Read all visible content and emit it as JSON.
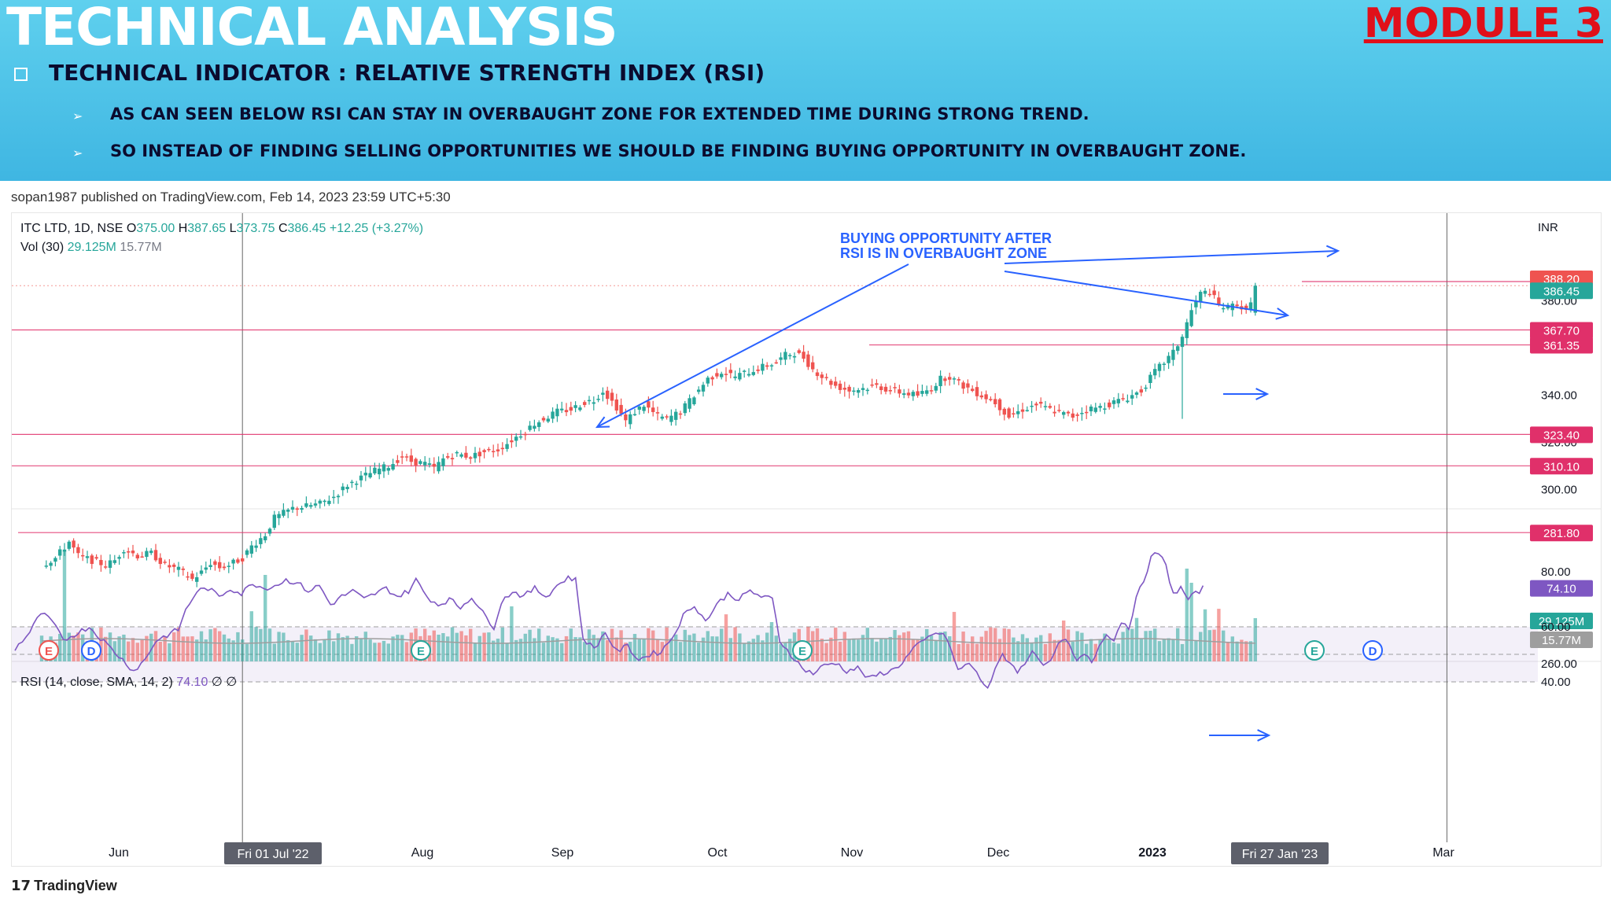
{
  "header": {
    "title": "TECHNICAL ANALYSIS",
    "module": "MODULE 3",
    "subtitle": "TECHNICAL INDICATOR : RELATIVE STRENGTH INDEX (RSI)",
    "bullets": [
      "AS CAN SEEN BELOW RSI CAN STAY IN OVERBAUGHT ZONE FOR EXTENDED TIME DURING STRONG TREND.",
      "SO INSTEAD OF FINDING SELLING OPPORTUNITIES WE SHOULD BE FINDING BUYING OPPORTUNITY IN OVERBAUGHT ZONE."
    ]
  },
  "publisher": "sopan1987 published on TradingView.com, Feb 14, 2023 23:59 UTC+5:30",
  "footer_logo": "TradingView",
  "colors": {
    "up": "#26a69a",
    "down": "#ef5350",
    "rsi": "#7e57c2",
    "hline": "#e0306a",
    "annotation": "#2962ff",
    "banner": "#4cc3ea"
  },
  "legend": {
    "symbol": "ITC LTD, 1D, NSE",
    "open_label": "O",
    "open": "375.00",
    "high_label": "H",
    "high": "387.65",
    "low_label": "L",
    "low": "373.75",
    "close_label": "C",
    "close": "386.45",
    "change": "+12.25 (+3.27%)",
    "vol_label": "Vol (30)",
    "vol": "29.125M",
    "vol_ma": "15.77M",
    "rsi_label": "RSI (14, close, SMA, 14, 2)",
    "rsi_value": "74.10",
    "rsi_extra": "∅ ∅"
  },
  "annotation": {
    "line1": "BUYING OPPORTUNITY AFTER",
    "line2": "RSI IS IN OVERBAUGHT ZONE"
  },
  "chart_data": {
    "type": "candlestick",
    "currency": "INR",
    "price_axis_ticks": [
      "380.00",
      "340.00",
      "320.00",
      "300.00",
      "260.00"
    ],
    "price_labels": [
      {
        "value": "388.20",
        "bg": "#ef5350"
      },
      {
        "value": "386.45",
        "bg": "#26a69a"
      },
      {
        "value": "367.70",
        "bg": "#e0306a"
      },
      {
        "value": "361.35",
        "bg": "#e0306a"
      },
      {
        "value": "323.40",
        "bg": "#e0306a"
      },
      {
        "value": "310.10",
        "bg": "#e0306a"
      },
      {
        "value": "281.80",
        "bg": "#e0306a"
      },
      {
        "value": "29.125M",
        "bg": "#26a69a"
      },
      {
        "value": "15.77M",
        "bg": "#9e9e9e"
      }
    ],
    "horizontal_lines": [
      367.7,
      361.35,
      323.4,
      310.1,
      281.8,
      388.2
    ],
    "rsi_axis_ticks": [
      "80.00",
      "60.00",
      "40.00"
    ],
    "rsi_label_value": "74.10",
    "rsi_band": [
      40,
      60
    ],
    "time_labels": [
      "Jun",
      "Aug",
      "Sep",
      "Oct",
      "Nov",
      "Dec",
      "2023",
      "Mar"
    ],
    "highlight_time_labels": [
      "Fri 01 Jul '22",
      "Fri 27 Jan '23"
    ],
    "event_markers": [
      {
        "label": "E",
        "kind": "earnings",
        "color": "#ef5350"
      },
      {
        "label": "D",
        "kind": "dividend",
        "color": "#2962ff"
      },
      {
        "label": "E",
        "kind": "earnings",
        "color": "#26a69a"
      },
      {
        "label": "E",
        "kind": "earnings",
        "color": "#26a69a"
      },
      {
        "label": "E",
        "kind": "earnings",
        "color": "#26a69a"
      },
      {
        "label": "D",
        "kind": "dividend",
        "color": "#2962ff"
      }
    ],
    "price_anchors": [
      [
        0,
        268
      ],
      [
        3,
        271
      ],
      [
        6,
        278
      ],
      [
        8,
        272
      ],
      [
        11,
        270
      ],
      [
        14,
        268
      ],
      [
        16,
        270
      ],
      [
        18,
        275
      ],
      [
        21,
        272
      ],
      [
        24,
        273
      ],
      [
        27,
        268
      ],
      [
        30,
        266
      ],
      [
        33,
        262
      ],
      [
        35,
        265
      ],
      [
        37,
        269
      ],
      [
        39,
        267
      ],
      [
        41,
        268
      ],
      [
        44,
        271
      ],
      [
        46,
        276
      ],
      [
        49,
        281
      ],
      [
        51,
        288
      ],
      [
        55,
        292
      ],
      [
        58,
        293
      ],
      [
        61,
        294
      ],
      [
        64,
        297
      ],
      [
        67,
        302
      ],
      [
        70,
        305
      ],
      [
        73,
        308
      ],
      [
        76,
        310
      ],
      [
        79,
        314
      ],
      [
        81,
        312
      ],
      [
        84,
        311
      ],
      [
        86,
        309
      ],
      [
        88,
        313
      ],
      [
        91,
        315
      ],
      [
        94,
        314
      ],
      [
        97,
        316
      ],
      [
        100,
        317
      ],
      [
        103,
        321
      ],
      [
        106,
        325
      ],
      [
        108,
        328
      ],
      [
        110,
        330
      ],
      [
        113,
        333
      ],
      [
        116,
        334
      ],
      [
        119,
        337
      ],
      [
        121,
        338
      ],
      [
        123,
        342
      ],
      [
        126,
        335
      ],
      [
        128,
        329
      ],
      [
        130,
        333
      ],
      [
        132,
        336
      ],
      [
        135,
        331
      ],
      [
        137,
        330
      ],
      [
        140,
        333
      ],
      [
        143,
        340
      ],
      [
        146,
        347
      ],
      [
        149,
        350
      ],
      [
        152,
        348
      ],
      [
        155,
        350
      ],
      [
        158,
        352
      ],
      [
        161,
        354
      ],
      [
        163,
        357
      ],
      [
        165,
        358
      ],
      [
        167,
        356
      ],
      [
        169,
        351
      ],
      [
        171,
        348
      ],
      [
        174,
        344
      ],
      [
        177,
        342
      ],
      [
        180,
        343
      ],
      [
        183,
        344
      ],
      [
        186,
        342
      ],
      [
        189,
        341
      ],
      [
        192,
        340
      ],
      [
        195,
        343
      ],
      [
        197,
        347
      ],
      [
        199,
        348
      ],
      [
        201,
        345
      ],
      [
        203,
        343
      ],
      [
        206,
        340
      ],
      [
        209,
        337
      ],
      [
        212,
        331
      ],
      [
        215,
        334
      ],
      [
        218,
        336
      ],
      [
        221,
        334
      ],
      [
        224,
        332
      ],
      [
        226,
        331
      ],
      [
        229,
        334
      ],
      [
        232,
        335
      ],
      [
        235,
        337
      ],
      [
        238,
        339
      ],
      [
        241,
        342
      ],
      [
        244,
        350
      ],
      [
        246,
        354
      ],
      [
        248,
        358
      ],
      [
        250,
        365
      ],
      [
        252,
        376
      ],
      [
        254,
        383
      ],
      [
        256,
        384
      ],
      [
        258,
        378
      ],
      [
        260,
        377
      ],
      [
        262,
        379
      ],
      [
        264,
        375
      ],
      [
        266,
        386.45
      ]
    ],
    "rsi_anchors": [
      [
        0,
        52
      ],
      [
        4,
        58
      ],
      [
        7,
        65
      ],
      [
        10,
        62
      ],
      [
        13,
        55
      ],
      [
        17,
        58
      ],
      [
        20,
        60
      ],
      [
        23,
        56
      ],
      [
        26,
        52
      ],
      [
        29,
        48
      ],
      [
        32,
        44
      ],
      [
        35,
        48
      ],
      [
        38,
        55
      ],
      [
        41,
        57
      ],
      [
        44,
        59
      ],
      [
        46,
        66
      ],
      [
        49,
        73
      ],
      [
        52,
        74
      ],
      [
        55,
        71
      ],
      [
        58,
        74
      ],
      [
        61,
        72
      ],
      [
        64,
        76
      ],
      [
        67,
        74
      ],
      [
        70,
        75
      ],
      [
        73,
        77
      ],
      [
        76,
        76
      ],
      [
        79,
        73
      ],
      [
        82,
        75
      ],
      [
        85,
        68
      ],
      [
        88,
        71
      ],
      [
        91,
        73
      ],
      [
        94,
        70
      ],
      [
        97,
        72
      ],
      [
        100,
        74
      ],
      [
        103,
        71
      ],
      [
        106,
        73
      ],
      [
        108,
        77
      ],
      [
        111,
        71
      ],
      [
        114,
        68
      ],
      [
        117,
        70
      ],
      [
        120,
        67
      ],
      [
        123,
        71
      ],
      [
        126,
        65
      ],
      [
        129,
        60
      ],
      [
        131,
        69
      ],
      [
        134,
        73
      ],
      [
        137,
        71
      ],
      [
        140,
        74
      ],
      [
        143,
        71
      ],
      [
        146,
        75
      ],
      [
        149,
        78
      ],
      [
        151,
        77
      ],
      [
        153,
        56
      ],
      [
        156,
        52
      ],
      [
        159,
        58
      ],
      [
        162,
        51
      ],
      [
        165,
        53
      ],
      [
        168,
        48
      ],
      [
        171,
        50
      ],
      [
        174,
        51
      ],
      [
        177,
        56
      ],
      [
        180,
        64
      ],
      [
        183,
        68
      ],
      [
        186,
        62
      ],
      [
        189,
        68
      ],
      [
        192,
        72
      ],
      [
        195,
        70
      ],
      [
        198,
        73
      ],
      [
        201,
        71
      ],
      [
        204,
        70
      ],
      [
        206,
        55
      ],
      [
        209,
        50
      ],
      [
        212,
        45
      ],
      [
        215,
        43
      ],
      [
        218,
        46
      ],
      [
        221,
        47
      ],
      [
        224,
        44
      ],
      [
        227,
        45
      ],
      [
        230,
        41
      ],
      [
        233,
        43
      ],
      [
        236,
        44
      ],
      [
        239,
        47
      ],
      [
        242,
        52
      ],
      [
        245,
        55
      ],
      [
        248,
        58
      ],
      [
        251,
        56
      ],
      [
        254,
        44
      ],
      [
        257,
        47
      ],
      [
        260,
        41
      ],
      [
        262,
        38
      ],
      [
        264,
        44
      ],
      [
        266,
        50
      ],
      [
        268,
        47
      ],
      [
        270,
        44
      ],
      [
        272,
        46
      ],
      [
        274,
        52
      ],
      [
        276,
        48
      ],
      [
        278,
        46
      ],
      [
        280,
        50
      ],
      [
        282,
        56
      ],
      [
        284,
        53
      ],
      [
        286,
        47
      ],
      [
        288,
        50
      ],
      [
        290,
        47
      ],
      [
        292,
        53
      ],
      [
        294,
        58
      ],
      [
        296,
        55
      ],
      [
        298,
        62
      ],
      [
        300,
        60
      ],
      [
        302,
        70
      ],
      [
        304,
        77
      ],
      [
        306,
        85
      ],
      [
        308,
        87
      ],
      [
        310,
        82
      ],
      [
        312,
        72
      ],
      [
        314,
        74
      ],
      [
        316,
        70
      ],
      [
        318,
        72
      ],
      [
        320,
        74.1
      ]
    ],
    "ohlc_note": "Last bar O 375.00 H 387.65 L 373.75 C 386.45"
  }
}
